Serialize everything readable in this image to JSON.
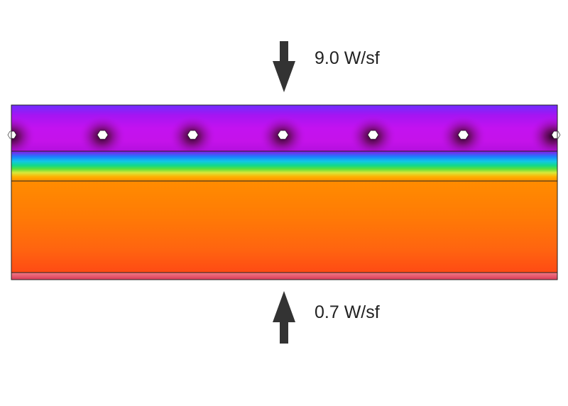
{
  "annotations": {
    "top_flux": "9.0 W/sf",
    "bottom_flux": "0.7 W/sf"
  },
  "tube_count": 7,
  "colors": {
    "arrow": "#333333",
    "text": "#222222",
    "outline": "#222222",
    "tube": "#ffffff"
  },
  "gradient_stops": {
    "top_layer": [
      "#6f2cff",
      "#a515f2",
      "#c312f0",
      "#c512ea",
      "#b40fde",
      "#9d0fd6"
    ],
    "transition_layer": [
      "#8a18e6",
      "#1e7dff",
      "#12c8e6",
      "#12d98a",
      "#5fe03a",
      "#d8e93a",
      "#ffb000",
      "#ff8f00"
    ],
    "base_layer": [
      "#ff8c00",
      "#ff7a06",
      "#ff6410",
      "#ff4a14"
    ],
    "bottom_strip": [
      "#f27a86",
      "#d83b5a"
    ]
  }
}
